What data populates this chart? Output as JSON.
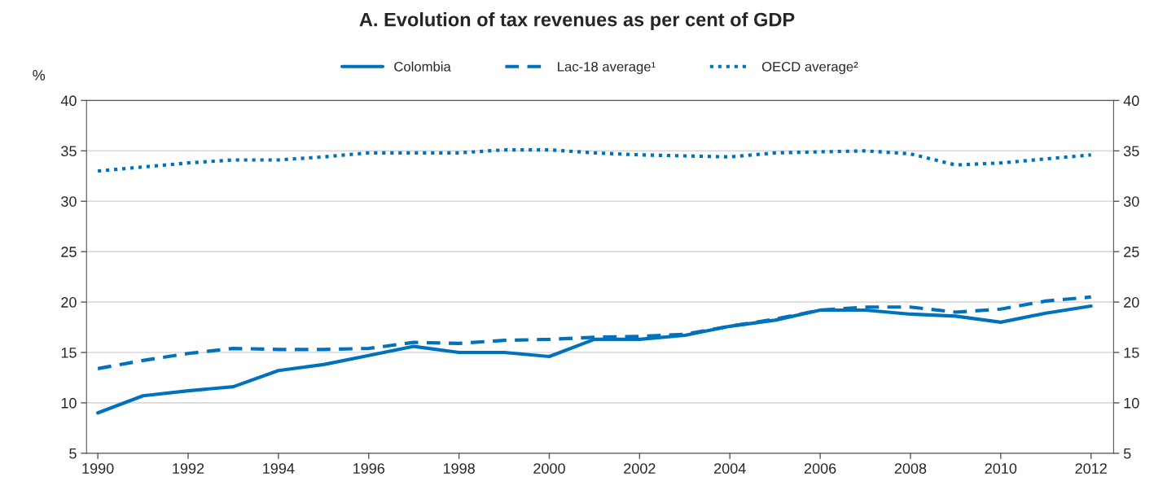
{
  "chart_data": {
    "type": "line",
    "title": "A. Evolution of tax revenues as per cent of GDP",
    "ylabel": "%",
    "x": [
      1990,
      1991,
      1992,
      1993,
      1994,
      1995,
      1996,
      1997,
      1998,
      1999,
      2000,
      2001,
      2002,
      2003,
      2004,
      2005,
      2006,
      2007,
      2008,
      2009,
      2010,
      2011,
      2012
    ],
    "series": [
      {
        "name": "Colombia",
        "color": "#0072bb",
        "line_style": "solid",
        "values": [
          9.0,
          10.7,
          11.2,
          11.6,
          13.2,
          13.8,
          14.7,
          15.6,
          15.0,
          15.0,
          14.6,
          16.3,
          16.3,
          16.7,
          17.6,
          18.2,
          19.2,
          19.2,
          18.8,
          18.6,
          18.0,
          18.9,
          19.6
        ]
      },
      {
        "name": "Lac-18 average¹",
        "color": "#0072bb",
        "line_style": "dashed",
        "values": [
          13.4,
          14.2,
          14.9,
          15.4,
          15.3,
          15.3,
          15.4,
          16.0,
          15.9,
          16.2,
          16.3,
          16.5,
          16.6,
          16.8,
          17.6,
          18.3,
          19.2,
          19.5,
          19.5,
          19.0,
          19.3,
          20.1,
          20.5
        ]
      },
      {
        "name": "OECD average²",
        "color": "#0072bb",
        "line_style": "dotted",
        "values": [
          33.0,
          33.4,
          33.8,
          34.1,
          34.1,
          34.4,
          34.8,
          34.8,
          34.8,
          35.1,
          35.1,
          34.8,
          34.6,
          34.5,
          34.4,
          34.8,
          34.9,
          35.0,
          34.7,
          33.6,
          33.8,
          34.2,
          34.6
        ]
      }
    ],
    "xlim": [
      1989.75,
      2012.5
    ],
    "xticks": [
      1990,
      1992,
      1994,
      1996,
      1998,
      2000,
      2002,
      2004,
      2006,
      2008,
      2010,
      2012
    ],
    "ylim": [
      5,
      40
    ],
    "yticks": [
      5,
      10,
      15,
      20,
      25,
      30,
      35,
      40
    ],
    "y2lim": [
      5,
      40
    ],
    "y2ticks": [
      5,
      10,
      15,
      20,
      25,
      30,
      35,
      40
    ],
    "grid": "y",
    "legend": "top",
    "marker": "none"
  }
}
